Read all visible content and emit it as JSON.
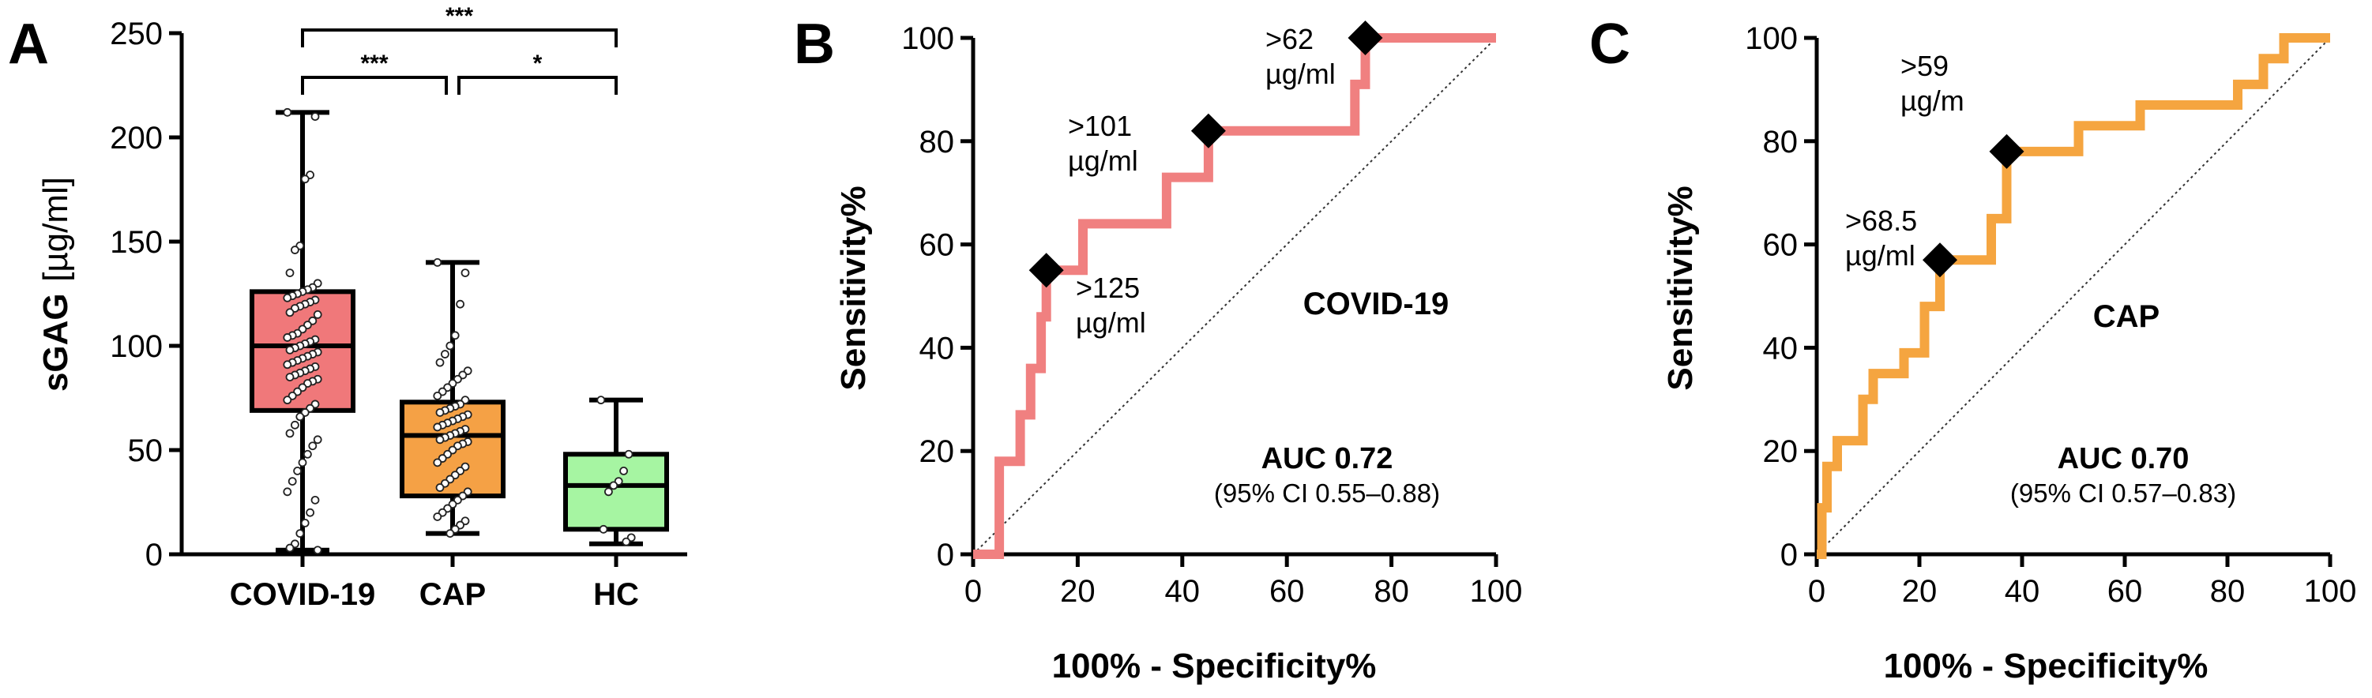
{
  "colors": {
    "covid": "#f0787a",
    "cap": "#f5a145",
    "hc": "#a6f5a2",
    "covid_roc": "#f08080",
    "cap_roc": "#f5a540"
  },
  "chart_data": [
    {
      "panel": "A",
      "type": "box",
      "ylabel": "sGAG",
      "ylabel_unit": "[µg/ml]",
      "ylim": [
        0,
        250
      ],
      "yticks": [
        "0",
        "50",
        "100",
        "150",
        "200",
        "250"
      ],
      "categories": [
        "COVID-19",
        "CAP",
        "HC"
      ],
      "boxes": [
        {
          "name": "COVID-19",
          "min": 2,
          "q1": 69,
          "median": 100,
          "q3": 126,
          "max": 212,
          "points": [
            212,
            210,
            182,
            180,
            148,
            146,
            135,
            130,
            128,
            127,
            126,
            125,
            124,
            123,
            122,
            121,
            120,
            119,
            118,
            116,
            115,
            112,
            110,
            108,
            106,
            105,
            104,
            103,
            102,
            101,
            100,
            99,
            98,
            97,
            96,
            95,
            94,
            93,
            92,
            91,
            90,
            89,
            88,
            87,
            86,
            85,
            84,
            83,
            82,
            80,
            78,
            76,
            74,
            72,
            70,
            68,
            66,
            62,
            58,
            55,
            52,
            48,
            44,
            40,
            35,
            30,
            26,
            20,
            15,
            10,
            5,
            3,
            2
          ]
        },
        {
          "name": "CAP",
          "min": 10,
          "q1": 28,
          "median": 57,
          "q3": 73,
          "max": 140,
          "points": [
            140,
            135,
            120,
            105,
            100,
            96,
            92,
            88,
            86,
            84,
            82,
            80,
            78,
            76,
            74,
            72,
            71,
            70,
            69,
            68,
            67,
            66,
            65,
            64,
            63,
            62,
            61,
            60,
            59,
            58,
            57,
            56,
            55,
            54,
            53,
            52,
            50,
            48,
            46,
            44,
            42,
            40,
            38,
            36,
            34,
            32,
            30,
            28,
            26,
            24,
            22,
            20,
            18,
            16,
            14,
            12,
            10
          ]
        },
        {
          "name": "HC",
          "min": 5,
          "q1": 12,
          "median": 33,
          "q3": 48,
          "max": 74,
          "points": [
            74,
            48,
            40,
            35,
            33,
            30,
            12,
            8,
            6
          ]
        }
      ],
      "significance": [
        {
          "from": "COVID-19",
          "to": "HC",
          "label": "***"
        },
        {
          "from": "COVID-19",
          "to": "CAP",
          "label": "***"
        },
        {
          "from": "CAP",
          "to": "HC",
          "label": "*"
        }
      ]
    },
    {
      "panel": "B",
      "type": "line",
      "title": "COVID-19",
      "xlabel": "100% - Specificity%",
      "ylabel": "Sensitivity%",
      "xlim": [
        0,
        100
      ],
      "ylim": [
        0,
        100
      ],
      "xticks": [
        "0",
        "20",
        "40",
        "60",
        "80",
        "100"
      ],
      "yticks": [
        "0",
        "20",
        "40",
        "60",
        "80",
        "100"
      ],
      "series": [
        {
          "name": "COVID-19",
          "x": [
            0,
            5,
            5,
            9,
            9,
            11,
            11,
            13,
            13,
            14,
            14,
            16,
            16,
            21,
            21,
            37,
            37,
            45,
            45,
            73,
            73,
            75,
            75,
            100
          ],
          "y": [
            0,
            0,
            18,
            18,
            27,
            27,
            36,
            36,
            46,
            46,
            55,
            55,
            55,
            55,
            64,
            64,
            73,
            73,
            82,
            82,
            91,
            91,
            100,
            100
          ]
        }
      ],
      "markers": [
        {
          "x": 14,
          "y": 55,
          "label_lines": [
            ">125",
            "µg/ml"
          ]
        },
        {
          "x": 45,
          "y": 82,
          "label_lines": [
            ">101",
            "µg/ml"
          ]
        },
        {
          "x": 75,
          "y": 100,
          "label_lines": [
            ">62",
            "µg/ml"
          ]
        }
      ],
      "auc": "AUC 0.72",
      "ci": "(95% CI 0.55–0.88)"
    },
    {
      "panel": "C",
      "type": "line",
      "title": "CAP",
      "xlabel": "100% - Specificity%",
      "ylabel": "Sensitivity%",
      "xlim": [
        0,
        100
      ],
      "ylim": [
        0,
        100
      ],
      "xticks": [
        "0",
        "20",
        "40",
        "60",
        "80",
        "100"
      ],
      "yticks": [
        "0",
        "20",
        "40",
        "60",
        "80",
        "100"
      ],
      "series": [
        {
          "name": "CAP",
          "x": [
            0,
            1,
            1,
            2,
            2,
            4,
            4,
            9,
            9,
            11,
            11,
            14,
            14,
            17,
            17,
            21,
            21,
            24,
            24,
            26,
            26,
            29,
            29,
            34,
            34,
            37,
            37,
            43,
            43,
            51,
            51,
            63,
            63,
            79,
            79,
            82,
            82,
            87,
            87,
            91,
            91,
            100
          ],
          "y": [
            0,
            0,
            9,
            9,
            17,
            17,
            22,
            22,
            30,
            30,
            35,
            35,
            35,
            35,
            39,
            39,
            48,
            48,
            57,
            57,
            57,
            57,
            57,
            57,
            65,
            65,
            78,
            78,
            78,
            78,
            83,
            83,
            87,
            87,
            87,
            87,
            91,
            91,
            96,
            96,
            100,
            100
          ]
        }
      ],
      "markers": [
        {
          "x": 24,
          "y": 57,
          "label_lines": [
            ">68.5",
            "µg/ml"
          ]
        },
        {
          "x": 37,
          "y": 78,
          "label_lines": [
            ">59",
            "µg/m"
          ]
        }
      ],
      "auc": "AUC 0.70",
      "ci": "(95% CI 0.57–0.83)"
    }
  ]
}
